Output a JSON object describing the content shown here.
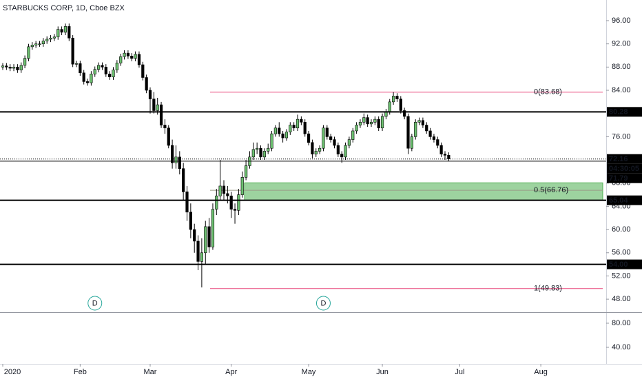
{
  "chart_data": {
    "type": "candlestick",
    "title": "STARBUCKS CORP, 1D, Cboe BZX",
    "up_color": "#6cc070",
    "down_color": "#000000",
    "open": [
      88.0,
      88.2,
      88.0,
      87.8,
      88.0,
      87.5,
      88.3,
      89.5,
      91.5,
      91.8,
      92.0,
      92.0,
      92.5,
      92.8,
      93.0,
      93.2,
      94.5,
      94.0,
      95.0,
      93.0,
      88.5,
      88.6,
      87.0,
      85.5,
      85.3,
      86.8,
      87.6,
      88.3,
      88.0,
      86.8,
      86.3,
      87.5,
      88.7,
      89.8,
      90.4,
      89.9,
      89.5,
      90.2,
      88.4,
      86.2,
      84.0,
      82.5,
      80.5,
      81.5,
      78.0,
      77.5,
      74.5,
      71.5,
      72.5,
      70.5,
      66.5,
      63.0,
      60.0,
      58.0,
      54.5,
      56.0,
      60.5,
      57.0,
      63.5,
      65.8,
      67.5,
      66.2,
      65.8,
      63.5,
      63.3,
      66.0,
      69.0,
      71.0,
      72.5,
      73.8,
      74.0,
      72.5,
      73.5,
      74.0,
      76.5,
      77.5,
      76.5,
      75.8,
      76.8,
      78.0,
      77.5,
      79.0,
      78.5,
      76.5,
      75.0,
      73.0,
      73.5,
      74.0,
      77.5,
      76.0,
      75.5,
      74.5,
      73.0,
      72.5,
      74.5,
      75.5,
      77.0,
      78.0,
      78.5,
      79.3,
      78.2,
      78.5,
      79.0,
      77.5,
      79.5,
      80.3,
      82.0,
      83.0,
      82.5,
      80.5,
      79.5,
      74.0,
      76.0,
      78.5,
      78.8,
      78.0,
      77.0,
      76.0,
      75.5,
      74.5,
      73.0,
      72.8
    ],
    "high": [
      88.7,
      88.7,
      88.5,
      88.5,
      88.5,
      88.8,
      90.0,
      92.0,
      92.3,
      92.5,
      92.5,
      93.0,
      93.3,
      93.5,
      93.7,
      95.0,
      95.0,
      95.5,
      95.5,
      93.5,
      89.1,
      89.1,
      87.5,
      86.0,
      87.3,
      88.1,
      88.8,
      88.8,
      88.5,
      87.3,
      88.0,
      89.2,
      90.3,
      90.9,
      90.9,
      90.4,
      90.7,
      90.7,
      88.9,
      86.7,
      84.5,
      83.7,
      82.7,
      82.0,
      79.0,
      78.0,
      75.5,
      74.5,
      73.5,
      71.5,
      67.5,
      64.5,
      61.0,
      59.0,
      58.5,
      61.5,
      62.0,
      64.5,
      67.0,
      72.0,
      68.5,
      67.5,
      66.5,
      64.5,
      67.0,
      70.0,
      72.0,
      73.5,
      75.0,
      75.0,
      74.5,
      74.0,
      74.8,
      77.0,
      78.0,
      78.5,
      77.0,
      77.3,
      78.5,
      78.5,
      79.8,
      79.5,
      79.0,
      77.0,
      75.5,
      74.0,
      74.5,
      78.0,
      78.0,
      76.5,
      76.0,
      75.0,
      73.5,
      75.0,
      76.0,
      77.5,
      78.5,
      79.0,
      80.0,
      79.8,
      79.0,
      79.5,
      79.5,
      80.0,
      80.8,
      82.5,
      83.68,
      83.5,
      83.0,
      81.0,
      80.0,
      76.5,
      79.0,
      79.3,
      79.3,
      78.5,
      77.5,
      76.5,
      76.0,
      75.0,
      73.5,
      73.3
    ],
    "low": [
      87.5,
      87.5,
      87.3,
      87.3,
      87.0,
      87.0,
      87.8,
      89.0,
      91.0,
      91.3,
      91.5,
      91.5,
      92.0,
      92.3,
      92.5,
      92.7,
      93.5,
      93.5,
      92.5,
      88.0,
      88.0,
      86.5,
      85.0,
      84.8,
      84.8,
      86.3,
      87.1,
      87.5,
      86.3,
      85.8,
      85.8,
      87.0,
      88.2,
      89.3,
      89.4,
      89.0,
      89.0,
      87.9,
      85.7,
      83.5,
      80.0,
      80.0,
      79.8,
      77.5,
      76.5,
      74.0,
      70.5,
      70.5,
      69.5,
      65.0,
      61.5,
      58.5,
      56.0,
      53.0,
      50.02,
      54.0,
      56.0,
      56.5,
      62.5,
      65.0,
      65.0,
      64.5,
      62.0,
      61.0,
      62.5,
      65.5,
      68.5,
      70.5,
      72.0,
      73.0,
      72.0,
      72.0,
      73.0,
      73.5,
      76.0,
      76.0,
      75.0,
      75.3,
      76.3,
      77.0,
      77.0,
      78.0,
      76.0,
      74.5,
      72.3,
      72.5,
      73.0,
      73.5,
      75.5,
      75.0,
      74.0,
      72.5,
      71.5,
      72.0,
      74.0,
      75.0,
      76.5,
      77.5,
      78.0,
      77.7,
      77.7,
      78.0,
      77.0,
      77.0,
      79.0,
      79.8,
      81.5,
      82.0,
      80.0,
      79.0,
      73.0,
      73.5,
      75.5,
      78.0,
      77.5,
      76.5,
      75.5,
      75.0,
      74.0,
      72.5,
      72.0,
      71.8
    ],
    "close": [
      88.2,
      88.0,
      87.8,
      88.0,
      87.5,
      88.3,
      89.5,
      91.5,
      91.8,
      92.0,
      92.0,
      92.5,
      92.8,
      93.0,
      93.2,
      94.5,
      94.0,
      95.0,
      93.0,
      88.5,
      88.6,
      87.0,
      85.5,
      85.3,
      86.8,
      87.6,
      88.3,
      88.0,
      86.8,
      86.3,
      87.5,
      88.7,
      89.8,
      90.4,
      89.9,
      89.5,
      90.2,
      88.4,
      86.2,
      84.0,
      82.5,
      80.5,
      81.5,
      78.0,
      77.5,
      74.5,
      71.5,
      72.5,
      70.5,
      66.5,
      63.0,
      60.0,
      58.0,
      54.5,
      56.0,
      60.5,
      57.0,
      63.5,
      65.8,
      67.5,
      66.2,
      65.8,
      63.5,
      63.3,
      66.0,
      69.0,
      71.0,
      72.5,
      73.8,
      74.0,
      72.5,
      73.5,
      74.0,
      76.5,
      77.5,
      76.5,
      75.8,
      76.8,
      78.0,
      77.5,
      79.0,
      78.5,
      76.5,
      75.0,
      73.0,
      73.5,
      74.0,
      77.5,
      76.0,
      75.5,
      74.5,
      73.0,
      72.5,
      74.5,
      75.5,
      77.0,
      78.0,
      78.5,
      79.3,
      78.2,
      78.5,
      79.0,
      77.5,
      79.5,
      80.3,
      82.0,
      83.0,
      82.5,
      80.5,
      79.5,
      74.0,
      76.0,
      78.5,
      78.8,
      78.0,
      77.0,
      76.0,
      75.5,
      74.5,
      73.0,
      72.8,
      72.16
    ],
    "ylim": [
      45.76,
      99.56
    ],
    "yticks": [
      {
        "value": 96,
        "label": "96.00"
      },
      {
        "value": 92,
        "label": "92.00"
      },
      {
        "value": 88,
        "label": "88.00"
      },
      {
        "value": 84,
        "label": "84.00"
      },
      {
        "value": 76,
        "label": "76.00"
      },
      {
        "value": 68,
        "label": "68.00"
      },
      {
        "value": 64,
        "label": "64.00"
      },
      {
        "value": 60,
        "label": "60.00"
      },
      {
        "value": 56,
        "label": "56.00"
      },
      {
        "value": 52,
        "label": "52.00"
      },
      {
        "value": 48,
        "label": "48.00"
      }
    ],
    "xticks": [
      {
        "value": 0,
        "label": "2020"
      },
      {
        "value": 21,
        "label": "Feb"
      },
      {
        "value": 40,
        "label": "Mar"
      },
      {
        "value": 62,
        "label": "Apr"
      },
      {
        "value": 83,
        "label": "May"
      },
      {
        "value": 103,
        "label": "Jun"
      },
      {
        "value": 124,
        "label": "Jul"
      },
      {
        "value": 146,
        "label": "Aug"
      }
    ],
    "levels": [
      {
        "value": 80.28,
        "label": "80.28",
        "style": "thick"
      },
      {
        "value": 72.16,
        "label": "72.16",
        "style": "dotted"
      },
      {
        "value": 71.79,
        "label": "71.79",
        "style": "thin"
      },
      {
        "value": 65.04,
        "label": "65.04",
        "style": "thick"
      },
      {
        "value": 54,
        "label": "54.00",
        "style": "thick"
      }
    ],
    "countdown": "04:30:05",
    "fib": [
      {
        "value": 83.68,
        "label": "0(83.68)",
        "color": "#e8457a"
      },
      {
        "value": 66.76,
        "label": "0.5(66.76)",
        "color": "#9a9a86"
      },
      {
        "value": 49.83,
        "label": "1(49.83)",
        "color": "#e8457a"
      }
    ],
    "zone": {
      "low": 65.04,
      "high": 68.05,
      "color": "#4caf50"
    },
    "events": [
      {
        "label": "D",
        "index": 25
      },
      {
        "label": "D",
        "index": 87
      }
    ],
    "pane2": {
      "ylim": [
        12.6,
        98.3
      ],
      "yticks": [
        {
          "value": 80,
          "label": "80.00"
        },
        {
          "value": 40,
          "label": "40.00"
        }
      ]
    }
  }
}
